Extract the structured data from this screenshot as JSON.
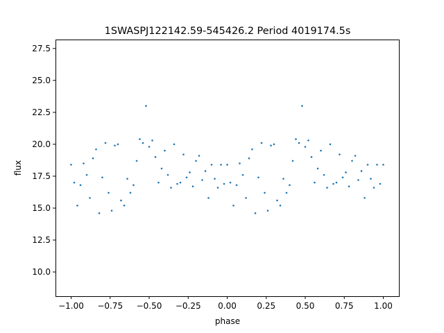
{
  "chart_data": {
    "type": "scatter",
    "title": "1SWASPJ122142.59-545426.2 Period 4019174.5s",
    "xlabel": "phase",
    "ylabel": "flux",
    "xlim": [
      -1.1,
      1.1
    ],
    "ylim": [
      8.1,
      28.2
    ],
    "xticks": [
      -1.0,
      -0.75,
      -0.5,
      -0.25,
      0.0,
      0.25,
      0.5,
      0.75,
      1.0
    ],
    "xtick_labels": [
      "−1.00",
      "−0.75",
      "−0.50",
      "−0.25",
      "0.00",
      "0.25",
      "0.50",
      "0.75",
      "1.00"
    ],
    "yticks": [
      10.0,
      12.5,
      15.0,
      17.5,
      20.0,
      22.5,
      25.0,
      27.5
    ],
    "ytick_labels": [
      "10.0",
      "12.5",
      "15.0",
      "17.5",
      "20.0",
      "22.5",
      "25.0",
      "27.5"
    ],
    "grid": false,
    "legend": "none",
    "marker_color": "#1f77b4",
    "series": [
      {
        "x": [
          -1.0,
          -0.98,
          -0.96,
          -0.94,
          -0.92,
          -0.9,
          -0.88,
          -0.86,
          -0.84,
          -0.82,
          -0.8,
          -0.78,
          -0.76,
          -0.74,
          -0.72,
          -0.7,
          -0.68,
          -0.66,
          -0.64,
          -0.62,
          -0.6,
          -0.58,
          -0.56,
          -0.54,
          -0.52,
          -0.5,
          -0.48,
          -0.46,
          -0.44,
          -0.42,
          -0.4,
          -0.38,
          -0.36,
          -0.34,
          -0.32,
          -0.3,
          -0.28,
          -0.26,
          -0.24,
          -0.22,
          -0.2,
          -0.18,
          -0.16,
          -0.14,
          -0.12,
          -0.1,
          -0.08,
          -0.06,
          -0.04,
          -0.02,
          0.0,
          0.02,
          0.04,
          0.06,
          0.08,
          0.1,
          0.12,
          0.14,
          0.16,
          0.18,
          0.2,
          0.22,
          0.24,
          0.26,
          0.28,
          0.3,
          0.32,
          0.34,
          0.36,
          0.38,
          0.4,
          0.42,
          0.44,
          0.46,
          0.48,
          0.5,
          0.52,
          0.54,
          0.56,
          0.58,
          0.6,
          0.62,
          0.64,
          0.66,
          0.68,
          0.7,
          0.72,
          0.74,
          0.76,
          0.78,
          0.8,
          0.82,
          0.84,
          0.86,
          0.88,
          0.9,
          0.92,
          0.94,
          0.96,
          0.98,
          1.0
        ],
        "y": [
          18.4,
          17.0,
          15.2,
          16.8,
          18.5,
          17.6,
          15.8,
          18.9,
          19.6,
          14.6,
          17.4,
          20.1,
          16.2,
          14.8,
          19.9,
          20.0,
          15.6,
          15.2,
          17.3,
          16.2,
          16.8,
          18.7,
          20.4,
          20.1,
          23.0,
          19.8,
          20.3,
          19.0,
          17.0,
          18.1,
          19.5,
          17.6,
          16.6,
          20.0,
          16.9,
          17.0,
          19.2,
          17.4,
          17.8,
          16.7,
          18.7,
          19.1,
          17.2,
          17.9,
          15.8,
          18.4,
          17.3,
          16.6,
          18.4,
          16.9,
          18.4,
          17.0,
          15.2,
          16.8,
          18.5,
          17.6,
          15.8,
          18.9,
          19.6,
          14.6,
          17.4,
          20.1,
          16.2,
          14.8,
          19.9,
          20.0,
          15.6,
          15.2,
          17.3,
          16.2,
          16.8,
          18.7,
          20.4,
          20.1,
          23.0,
          19.8,
          20.3,
          19.0,
          17.0,
          18.1,
          19.5,
          17.6,
          16.6,
          20.0,
          16.9,
          17.0,
          19.2,
          17.4,
          17.8,
          16.7,
          18.7,
          19.1,
          17.2,
          17.9,
          15.8,
          18.4,
          17.3,
          16.6,
          18.4,
          16.9,
          18.4
        ]
      }
    ]
  }
}
